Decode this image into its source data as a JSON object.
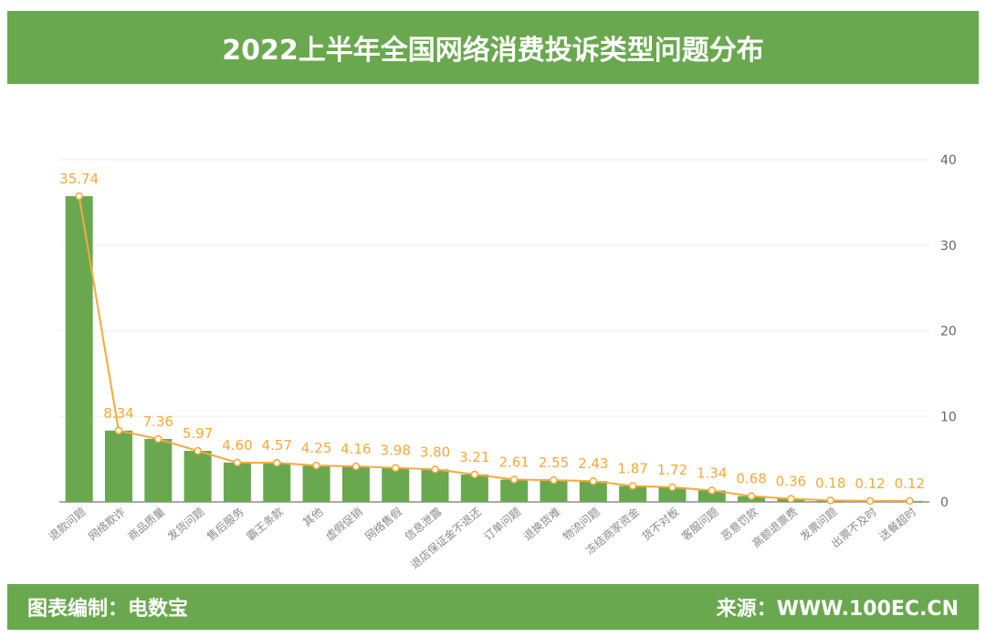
{
  "chart_data": {
    "type": "bar",
    "title": "2022上半年全国网络消费投诉类型问题分布",
    "categories": [
      "退款问题",
      "网络欺诈",
      "商品质量",
      "发货问题",
      "售后服务",
      "霸王条款",
      "其他",
      "虚假促销",
      "网络售假",
      "信息泄露",
      "退店保证金不退还",
      "订单问题",
      "退换货难",
      "物流问题",
      "冻结商家资金",
      "货不对板",
      "客服问题",
      "恶意罚款",
      "高额退票费",
      "发票问题",
      "出票不及时",
      "送餐超时"
    ],
    "values": [
      35.74,
      8.34,
      7.36,
      5.97,
      4.6,
      4.57,
      4.25,
      4.16,
      3.98,
      3.8,
      3.21,
      2.61,
      2.55,
      2.43,
      1.87,
      1.72,
      1.34,
      0.68,
      0.36,
      0.18,
      0.12,
      0.12
    ],
    "value_labels": [
      "35.74",
      "8.34",
      "7.36",
      "5.97",
      "4.60",
      "4.57",
      "4.25",
      "4.16",
      "3.98",
      "3.80",
      "3.21",
      "2.61",
      "2.55",
      "2.43",
      "1.87",
      "1.72",
      "1.34",
      "0.68",
      "0.36",
      "0.18",
      "0.12",
      "0.12"
    ],
    "overlay": "line",
    "ylim": [
      0,
      40
    ],
    "yticks": [
      0,
      10,
      20,
      30,
      40
    ],
    "y_axis_side": "right",
    "grid": true,
    "colors": {
      "bar": "#6aa84f",
      "line": "#f5a93a",
      "banner": "#6aa84f"
    }
  },
  "footer": {
    "left": "图表编制：电数宝",
    "right": "来源：WWW.100EC.CN"
  }
}
